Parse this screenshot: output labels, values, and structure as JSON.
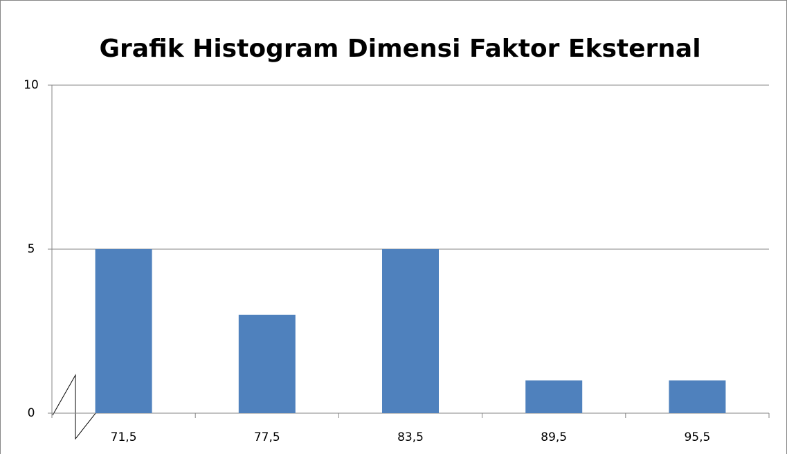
{
  "chart_data": {
    "type": "bar",
    "title": "Grafik Histogram Dimensi Faktor Eksternal",
    "categories": [
      "71,5",
      "77,5",
      "83,5",
      "89,5",
      "95,5"
    ],
    "values": [
      5,
      3,
      5,
      1,
      1
    ],
    "color": "#4f81bd",
    "ylim": [
      0,
      10
    ],
    "yticks": [
      0,
      5,
      10
    ],
    "grid": true
  }
}
